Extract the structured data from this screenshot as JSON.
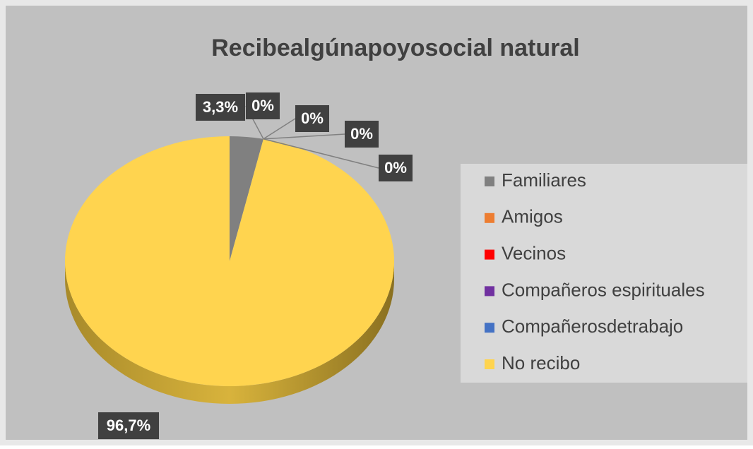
{
  "chart_data": {
    "type": "pie",
    "title": "Recibealgúnapoyosocial natural",
    "categories": [
      "Familiares",
      "Amigos",
      "Vecinos",
      "Compañeros espirituales",
      "Compañerosdetrabajo",
      "No recibo"
    ],
    "values": [
      3.3,
      0,
      0,
      0,
      0,
      96.7
    ],
    "value_labels": [
      "3,3%",
      "0%",
      "0%",
      "0%",
      "0%",
      "96,7%"
    ],
    "colors": [
      "#808080",
      "#ed7d31",
      "#ff0000",
      "#7030a0",
      "#4472c4",
      "#ffd44f"
    ],
    "legend": "right"
  }
}
